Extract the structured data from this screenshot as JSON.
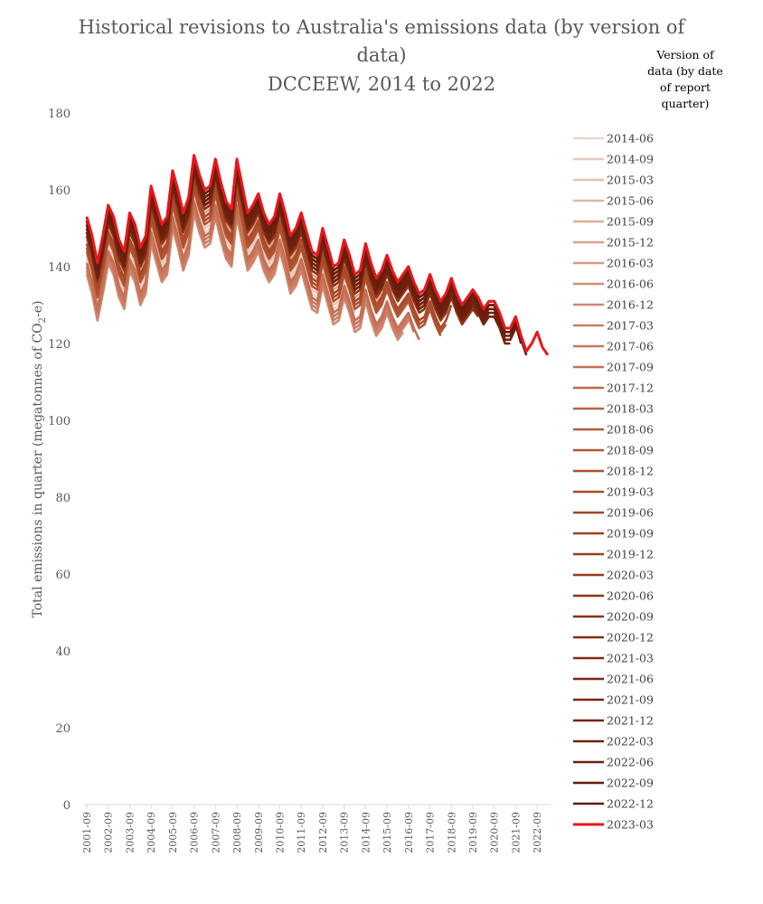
{
  "chart_data": {
    "type": "line",
    "title": "Historical revisions to Australia's emissions data (by version of data)",
    "title_line1": "Historical revisions to Australia's emissions data (by version of",
    "title_line2": "data)",
    "subtitle": "DCCEEW, 2014 to 2022",
    "xlabel": "",
    "ylabel_prefix": "Total emissions in quarter (megatonnes of CO",
    "ylabel_sub": "2",
    "ylabel_suffix": "-e)",
    "ylim": [
      0,
      180
    ],
    "yticks": [
      0,
      20,
      40,
      60,
      80,
      100,
      120,
      140,
      160,
      180
    ],
    "grid": false,
    "legend_title": "Version of data (by date of report quarter)",
    "legend_title_lines": [
      "Version of",
      "data (by date",
      "of report",
      "quarter)"
    ],
    "legend_position": "right",
    "x_start": "2001-09",
    "x_end": "2023-03",
    "x_tick_labels": [
      "2001-09",
      "2002-09",
      "2003-09",
      "2004-09",
      "2005-09",
      "2006-09",
      "2007-09",
      "2008-09",
      "2009-09",
      "2010-09",
      "2011-09",
      "2012-09",
      "2013-09",
      "2014-09",
      "2015-09",
      "2016-09",
      "2017-09",
      "2018-09",
      "2019-09",
      "2020-09",
      "2021-09",
      "2022-09"
    ],
    "final_series_color": "#e8171b",
    "series_names": [
      "2014-06",
      "2014-09",
      "2015-03",
      "2015-06",
      "2015-09",
      "2015-12",
      "2016-03",
      "2016-06",
      "2016-12",
      "2017-03",
      "2017-06",
      "2017-09",
      "2017-12",
      "2018-03",
      "2018-06",
      "2018-09",
      "2018-12",
      "2019-03",
      "2019-06",
      "2019-09",
      "2019-12",
      "2020-03",
      "2020-06",
      "2020-09",
      "2020-12",
      "2021-03",
      "2021-06",
      "2021-09",
      "2021-12",
      "2022-03",
      "2022-06",
      "2022-09",
      "2022-12",
      "2023-03"
    ],
    "series_colors": [
      "#ecd4cb",
      "#e9c8bd",
      "#e6bfb2",
      "#e3b5a6",
      "#dfac99",
      "#dca28d",
      "#d89a84",
      "#d4907a",
      "#d08770",
      "#cc7f67",
      "#c8775d",
      "#c46f53",
      "#c0684a",
      "#bc6242",
      "#b75b3a",
      "#b35533",
      "#ae4f2d",
      "#aa4a28",
      "#a54523",
      "#a0401f",
      "#9b3c1c",
      "#963819",
      "#913417",
      "#8c3115",
      "#872e13",
      "#822b12",
      "#7d2811",
      "#782610",
      "#73230f",
      "#6e210e",
      "#691f0d",
      "#641d0c",
      "#5f1b0b",
      "#e8171b"
    ],
    "series_end": [
      "2013-12",
      "2014-03",
      "2014-09",
      "2014-12",
      "2015-03",
      "2015-06",
      "2015-09",
      "2015-12",
      "2016-06",
      "2016-09",
      "2016-12",
      "2017-03",
      "2017-06",
      "2017-09",
      "2017-12",
      "2018-03",
      "2018-06",
      "2018-09",
      "2018-12",
      "2019-03",
      "2019-06",
      "2019-09",
      "2019-12",
      "2020-03",
      "2020-06",
      "2020-09",
      "2020-12",
      "2021-03",
      "2021-06",
      "2021-09",
      "2021-12",
      "2022-03",
      "2022-06",
      "2023-03"
    ],
    "series_offsets": [
      -8,
      -7,
      -6,
      -5,
      -4,
      -3,
      -2,
      -1,
      -12,
      -11,
      -10,
      -9,
      0,
      1,
      2,
      -6,
      -5,
      -4,
      -1,
      0,
      1,
      2,
      -2,
      -1,
      0,
      1,
      2,
      3,
      -1,
      0,
      1,
      2,
      3,
      3
    ],
    "reference_series_values": [
      150,
      145,
      138,
      145,
      153,
      150,
      144,
      141,
      151,
      148,
      142,
      145,
      158,
      153,
      148,
      150,
      162,
      157,
      151,
      155,
      166,
      161,
      157,
      158,
      165,
      159,
      154,
      152,
      165,
      158,
      151,
      153,
      156,
      151,
      148,
      150,
      156,
      151,
      145,
      147,
      151,
      146,
      141,
      140,
      147,
      142,
      137,
      138,
      144,
      140,
      135,
      136,
      143,
      138,
      134,
      136,
      140,
      136,
      133,
      135,
      137,
      133,
      130,
      131,
      135,
      131,
      128,
      130,
      134,
      130,
      127,
      129,
      131,
      129,
      126,
      128,
      128,
      125,
      121,
      121,
      124,
      119,
      115,
      117,
      120,
      116,
      114,
      118,
      120,
      116,
      113,
      115
    ]
  }
}
